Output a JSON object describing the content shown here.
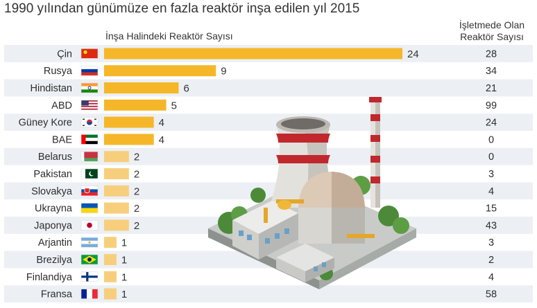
{
  "title": "1990 yılından günümüze en fazla reaktör inşa edilen yıl 2015",
  "chart_data": {
    "type": "bar",
    "orientation": "horizontal",
    "title": "1990 yılından günümüze en fazla reaktör inşa edilen yıl 2015",
    "series": [
      {
        "name": "İnşa Halindeki Reaktör Sayısı",
        "values": [
          24,
          9,
          6,
          5,
          4,
          4,
          2,
          2,
          2,
          2,
          2,
          1,
          1,
          1,
          1
        ]
      }
    ],
    "categories": [
      "Çin",
      "Rusya",
      "Hindistan",
      "ABD",
      "Güney Kore",
      "BAE",
      "Belarus",
      "Pakistan",
      "Slovakya",
      "Ukrayna",
      "Japonya",
      "Arjantin",
      "Brezilya",
      "Finlandiya",
      "Fransa"
    ],
    "flags": [
      "china-flag-icon",
      "russia-flag-icon",
      "india-flag-icon",
      "usa-flag-icon",
      "south-korea-flag-icon",
      "uae-flag-icon",
      "belarus-flag-icon",
      "pakistan-flag-icon",
      "slovakia-flag-icon",
      "ukraine-flag-icon",
      "japan-flag-icon",
      "argentina-flag-icon",
      "brazil-flag-icon",
      "finland-flag-icon",
      "france-flag-icon"
    ],
    "operating_header": "İşletmede Olan Reaktör Sayısı",
    "operating_values": [
      28,
      34,
      21,
      99,
      24,
      0,
      0,
      3,
      4,
      15,
      43,
      3,
      2,
      4,
      58
    ],
    "xlim": [
      0,
      24
    ],
    "colors": {
      "bar_strong": "#f5b729",
      "bar_light": "#f7cf7c",
      "row_stripe": "#eceff3"
    }
  }
}
